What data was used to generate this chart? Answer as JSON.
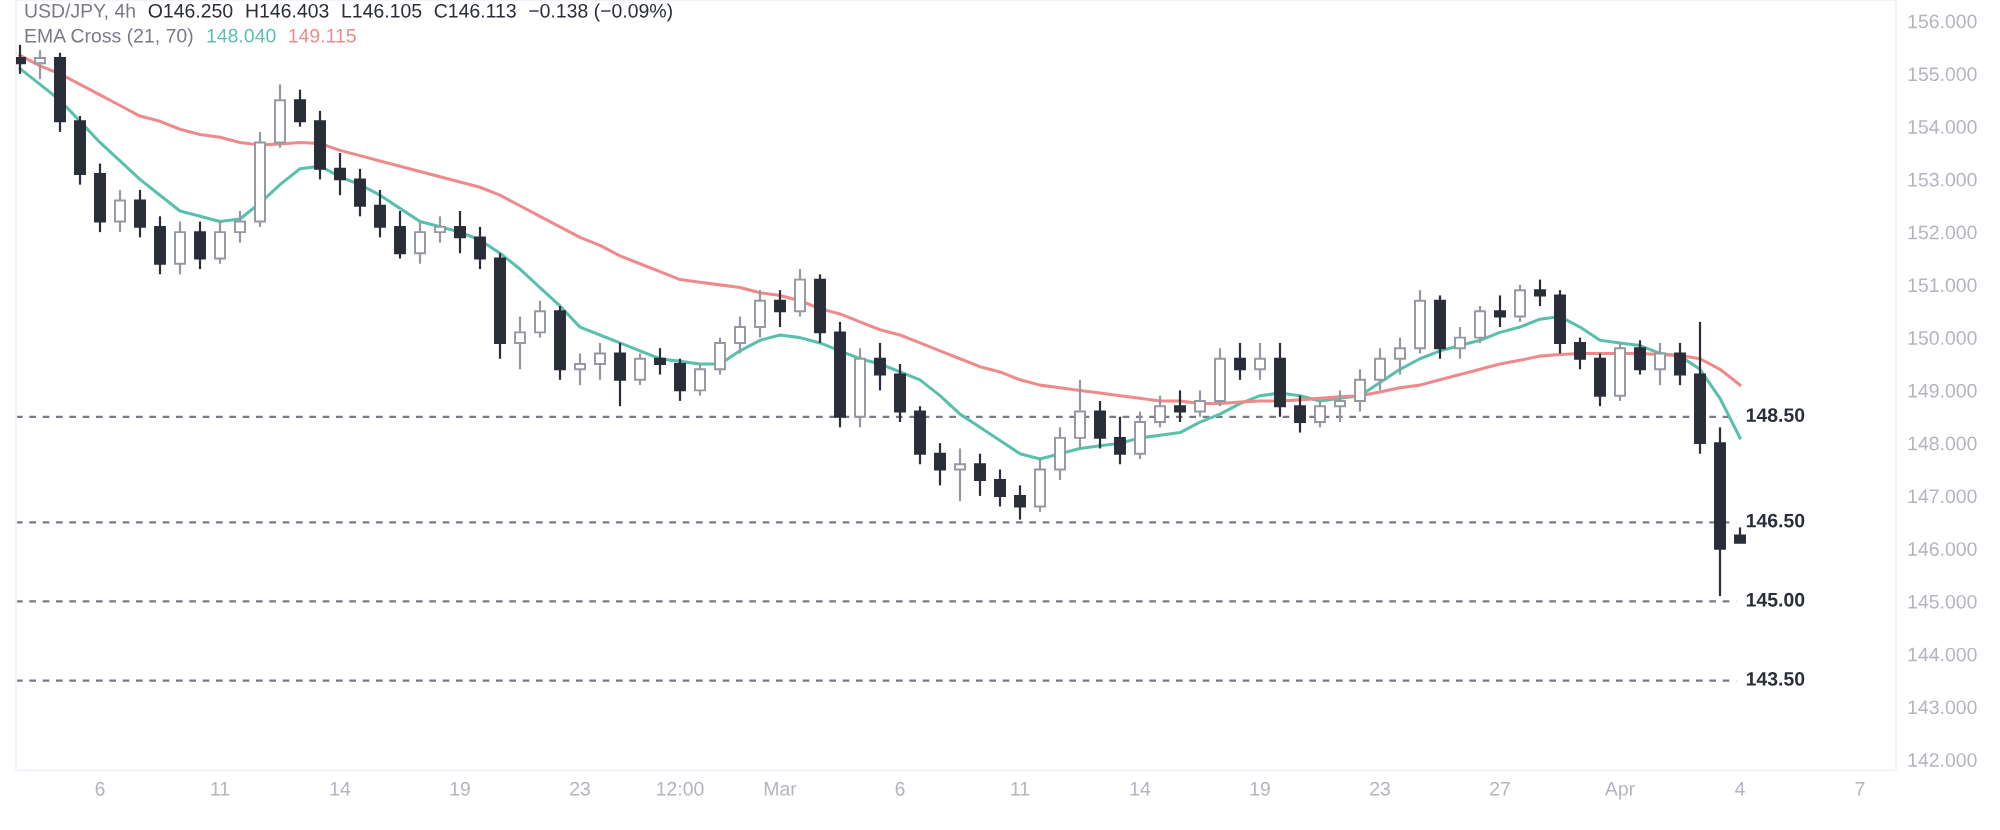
{
  "chart_data": {
    "type": "candlestick",
    "annotations": [
      "USD/JPY, 4h",
      "O146.250",
      "H146.403",
      "L146.105",
      "C146.113",
      "−0.138 (−0.09%)",
      "EMA Cross (21, 70)",
      "148.040",
      "149.115"
    ],
    "categories": [
      null,
      null,
      null,
      null,
      "6",
      null,
      null,
      null,
      null,
      null,
      "11",
      null,
      null,
      null,
      null,
      null,
      "14",
      null,
      null,
      null,
      null,
      null,
      "19",
      null,
      null,
      null,
      null,
      null,
      "23",
      null,
      null,
      null,
      null,
      "12:00",
      null,
      null,
      null,
      null,
      "Mar",
      null,
      null,
      null,
      null,
      null,
      "6",
      null,
      null,
      null,
      null,
      null,
      "11",
      null,
      null,
      null,
      null,
      null,
      "14",
      null,
      null,
      null,
      null,
      null,
      "19",
      null,
      null,
      null,
      null,
      null,
      "23",
      null,
      null,
      null,
      null,
      null,
      "27",
      null,
      null,
      null,
      null,
      null,
      "Apr",
      null,
      null,
      null,
      null,
      null,
      "4",
      null,
      null,
      null,
      null,
      null,
      "7",
      null
    ],
    "ohlc": [
      [
        155.3,
        155.55,
        155.0,
        155.2
      ],
      [
        155.2,
        155.45,
        154.9,
        155.3
      ],
      [
        155.3,
        155.4,
        153.9,
        154.1
      ],
      [
        154.1,
        154.2,
        152.9,
        153.1
      ],
      [
        153.1,
        153.3,
        152.0,
        152.2
      ],
      [
        152.2,
        152.8,
        152.0,
        152.6
      ],
      [
        152.6,
        152.8,
        151.9,
        152.1
      ],
      [
        152.1,
        152.3,
        151.2,
        151.4
      ],
      [
        151.4,
        152.2,
        151.2,
        152.0
      ],
      [
        152.0,
        152.2,
        151.3,
        151.5
      ],
      [
        151.5,
        152.2,
        151.4,
        152.0
      ],
      [
        152.0,
        152.4,
        151.8,
        152.2
      ],
      [
        152.2,
        153.9,
        152.1,
        153.7
      ],
      [
        153.7,
        154.8,
        153.6,
        154.5
      ],
      [
        154.5,
        154.7,
        154.0,
        154.1
      ],
      [
        154.1,
        154.3,
        153.0,
        153.2
      ],
      [
        153.2,
        153.5,
        152.7,
        153.0
      ],
      [
        153.0,
        153.2,
        152.3,
        152.5
      ],
      [
        152.5,
        152.8,
        151.9,
        152.1
      ],
      [
        152.1,
        152.4,
        151.5,
        151.6
      ],
      [
        151.6,
        152.2,
        151.4,
        152.0
      ],
      [
        152.0,
        152.3,
        151.8,
        152.1
      ],
      [
        152.1,
        152.4,
        151.6,
        151.9
      ],
      [
        151.9,
        152.1,
        151.3,
        151.5
      ],
      [
        151.5,
        151.6,
        149.6,
        149.9
      ],
      [
        149.9,
        150.4,
        149.4,
        150.1
      ],
      [
        150.1,
        150.7,
        150.0,
        150.5
      ],
      [
        150.5,
        150.6,
        149.2,
        149.4
      ],
      [
        149.4,
        149.7,
        149.1,
        149.5
      ],
      [
        149.5,
        149.9,
        149.2,
        149.7
      ],
      [
        149.7,
        149.9,
        148.7,
        149.2
      ],
      [
        149.2,
        149.7,
        149.1,
        149.6
      ],
      [
        149.6,
        149.8,
        149.3,
        149.5
      ],
      [
        149.5,
        149.6,
        148.8,
        149.0
      ],
      [
        149.0,
        149.5,
        148.9,
        149.4
      ],
      [
        149.4,
        150.0,
        149.3,
        149.9
      ],
      [
        149.9,
        150.4,
        149.7,
        150.2
      ],
      [
        150.2,
        150.9,
        150.0,
        150.7
      ],
      [
        150.7,
        150.9,
        150.2,
        150.5
      ],
      [
        150.5,
        151.3,
        150.4,
        151.1
      ],
      [
        151.1,
        151.2,
        149.9,
        150.1
      ],
      [
        150.1,
        150.3,
        148.3,
        148.5
      ],
      [
        148.5,
        149.8,
        148.3,
        149.6
      ],
      [
        149.6,
        149.9,
        149.0,
        149.3
      ],
      [
        149.3,
        149.5,
        148.4,
        148.6
      ],
      [
        148.6,
        148.7,
        147.6,
        147.8
      ],
      [
        147.8,
        148.0,
        147.2,
        147.5
      ],
      [
        147.5,
        147.9,
        146.9,
        147.6
      ],
      [
        147.6,
        147.8,
        147.0,
        147.3
      ],
      [
        147.3,
        147.5,
        146.8,
        147.0
      ],
      [
        147.0,
        147.2,
        146.55,
        146.8
      ],
      [
        146.8,
        147.7,
        146.7,
        147.5
      ],
      [
        147.5,
        148.3,
        147.3,
        148.1
      ],
      [
        148.1,
        149.2,
        147.9,
        148.6
      ],
      [
        148.6,
        148.8,
        147.9,
        148.1
      ],
      [
        148.1,
        148.5,
        147.6,
        147.8
      ],
      [
        147.8,
        148.6,
        147.7,
        148.4
      ],
      [
        148.4,
        148.9,
        148.3,
        148.7
      ],
      [
        148.7,
        149.0,
        148.4,
        148.6
      ],
      [
        148.6,
        149.0,
        148.5,
        148.8
      ],
      [
        148.8,
        149.8,
        148.7,
        149.6
      ],
      [
        149.6,
        149.9,
        149.2,
        149.4
      ],
      [
        149.4,
        149.9,
        149.2,
        149.6
      ],
      [
        149.6,
        149.9,
        148.5,
        148.7
      ],
      [
        148.7,
        148.9,
        148.2,
        148.4
      ],
      [
        148.4,
        148.8,
        148.3,
        148.7
      ],
      [
        148.7,
        149.0,
        148.4,
        148.8
      ],
      [
        148.8,
        149.4,
        148.6,
        149.2
      ],
      [
        149.2,
        149.8,
        149.0,
        149.6
      ],
      [
        149.6,
        150.0,
        149.3,
        149.8
      ],
      [
        149.8,
        150.9,
        149.7,
        150.7
      ],
      [
        150.7,
        150.8,
        149.6,
        149.8
      ],
      [
        149.8,
        150.2,
        149.6,
        150.0
      ],
      [
        150.0,
        150.6,
        149.9,
        150.5
      ],
      [
        150.5,
        150.8,
        150.2,
        150.4
      ],
      [
        150.4,
        151.0,
        150.3,
        150.9
      ],
      [
        150.9,
        151.1,
        150.6,
        150.8
      ],
      [
        150.8,
        150.9,
        149.7,
        149.9
      ],
      [
        149.9,
        150.0,
        149.4,
        149.6
      ],
      [
        149.6,
        149.7,
        148.7,
        148.9
      ],
      [
        148.9,
        149.9,
        148.8,
        149.8
      ],
      [
        149.8,
        149.95,
        149.3,
        149.4
      ],
      [
        149.4,
        149.9,
        149.1,
        149.7
      ],
      [
        149.7,
        149.9,
        149.1,
        149.3
      ],
      [
        149.3,
        150.3,
        147.8,
        148.0
      ],
      [
        148.0,
        148.3,
        145.1,
        146.0
      ],
      [
        146.25,
        146.403,
        146.105,
        146.113
      ],
      null,
      null,
      null,
      null,
      null,
      null,
      null
    ],
    "series": [
      {
        "type": "line",
        "color": "#5bbfae",
        "values": [
          155.1,
          154.8,
          154.5,
          154.1,
          153.7,
          153.35,
          153.0,
          152.7,
          152.4,
          152.3,
          152.2,
          152.25,
          152.55,
          152.9,
          153.2,
          153.25,
          153.05,
          152.9,
          152.7,
          152.45,
          152.2,
          152.1,
          152.0,
          151.85,
          151.6,
          151.3,
          150.95,
          150.6,
          150.2,
          150.05,
          149.9,
          149.75,
          149.6,
          149.55,
          149.5,
          149.5,
          149.75,
          149.95,
          150.05,
          150.0,
          149.9,
          149.75,
          149.6,
          149.5,
          149.35,
          149.2,
          148.9,
          148.55,
          148.3,
          148.05,
          147.8,
          147.7,
          147.8,
          147.9,
          147.95,
          148.0,
          148.1,
          148.15,
          148.2,
          148.4,
          148.55,
          148.75,
          148.9,
          148.95,
          148.9,
          148.8,
          148.85,
          148.9,
          149.15,
          149.4,
          149.6,
          149.75,
          149.85,
          149.95,
          150.1,
          150.2,
          150.35,
          150.4,
          150.2,
          149.95,
          149.9,
          149.85,
          149.7,
          149.65,
          149.4,
          148.85,
          148.1,
          null,
          null,
          null,
          null,
          null,
          null,
          null
        ]
      },
      {
        "type": "line",
        "color": "#ef8a8a",
        "values": [
          155.35,
          155.15,
          155.0,
          154.8,
          154.6,
          154.4,
          154.2,
          154.1,
          153.95,
          153.85,
          153.8,
          153.7,
          153.65,
          153.67,
          153.7,
          153.68,
          153.55,
          153.45,
          153.35,
          153.25,
          153.15,
          153.05,
          152.95,
          152.85,
          152.7,
          152.5,
          152.3,
          152.1,
          151.9,
          151.75,
          151.55,
          151.4,
          151.25,
          151.1,
          151.05,
          151.0,
          150.95,
          150.85,
          150.8,
          150.7,
          150.55,
          150.45,
          150.3,
          150.15,
          150.05,
          149.9,
          149.75,
          149.6,
          149.45,
          149.35,
          149.2,
          149.1,
          149.05,
          149.0,
          148.95,
          148.9,
          148.85,
          148.8,
          148.8,
          148.75,
          148.75,
          148.78,
          148.8,
          148.8,
          148.82,
          148.85,
          148.88,
          148.9,
          148.97,
          149.05,
          149.1,
          149.2,
          149.3,
          149.4,
          149.5,
          149.57,
          149.65,
          149.68,
          149.7,
          149.7,
          149.7,
          149.7,
          149.68,
          149.66,
          149.6,
          149.4,
          149.1,
          null,
          null,
          null,
          null,
          null,
          null,
          null
        ]
      }
    ],
    "ref_lines": [
      {
        "axis": "y",
        "value": 148.5,
        "label": "148.50",
        "color": "#787b86",
        "line_style": "dashed"
      },
      {
        "axis": "y",
        "value": 146.5,
        "label": "146.50",
        "color": "#787b86",
        "line_style": "dashed"
      },
      {
        "axis": "y",
        "value": 145.0,
        "label": "145.00",
        "color": "#787b86",
        "line_style": "dashed"
      },
      {
        "axis": "y",
        "value": 143.5,
        "label": "143.50",
        "color": "#787b86",
        "line_style": "dashed"
      }
    ],
    "ylim": [
      141.8,
      156.4
    ],
    "yticks": [
      {
        "value": 142,
        "label": "142.000"
      },
      {
        "value": 143,
        "label": "143.000"
      },
      {
        "value": 144,
        "label": "144.000"
      },
      {
        "value": 145,
        "label": "145.000"
      },
      {
        "value": 146,
        "label": "146.000"
      },
      {
        "value": 147,
        "label": "147.000"
      },
      {
        "value": 148,
        "label": "148.000"
      },
      {
        "value": 149,
        "label": "149.000"
      },
      {
        "value": 150,
        "label": "150.000"
      },
      {
        "value": 151,
        "label": "151.000"
      },
      {
        "value": 152,
        "label": "152.000"
      },
      {
        "value": 153,
        "label": "153.000"
      },
      {
        "value": 154,
        "label": "154.000"
      },
      {
        "value": 155,
        "label": "155.000"
      },
      {
        "value": 156,
        "label": "156.000"
      }
    ],
    "grid": false,
    "legend": false
  }
}
